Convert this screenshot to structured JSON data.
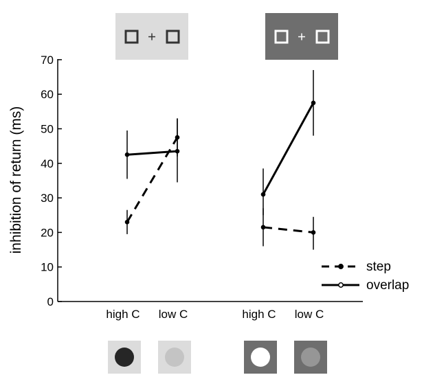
{
  "chart_data": {
    "type": "line",
    "ylabel": "inhibition of return (ms)",
    "ylim": [
      0,
      70
    ],
    "yticks": [
      0,
      10,
      20,
      30,
      40,
      50,
      60,
      70
    ],
    "grid": false,
    "legend_position": "bottom-right",
    "categories": [
      "high C",
      "low C",
      "high C",
      "low C"
    ],
    "groups": [
      {
        "fixation_colors": {
          "background": "#dcdcdc",
          "marker": "#333333"
        },
        "target_colors": [
          {
            "background": "#dcdcdc",
            "disc": "#262626"
          },
          {
            "background": "#dcdcdc",
            "disc": "#c4c4c4"
          }
        ],
        "series": [
          {
            "name": "step",
            "values": [
              23,
              47.5
            ],
            "error": [
              [
                19.5,
                26.5
              ],
              [
                42,
                53
              ]
            ]
          },
          {
            "name": "overlap",
            "values": [
              42.5,
              43.5
            ],
            "error": [
              [
                35.5,
                49.5
              ],
              [
                34.5,
                53
              ]
            ]
          }
        ]
      },
      {
        "fixation_colors": {
          "background": "#6e6e6e",
          "marker": "#ffffff"
        },
        "target_colors": [
          {
            "background": "#6e6e6e",
            "disc": "#ffffff"
          },
          {
            "background": "#6e6e6e",
            "disc": "#969696"
          }
        ],
        "series": [
          {
            "name": "step",
            "values": [
              21.5,
              20
            ],
            "error": [
              [
                16,
                27
              ],
              [
                15,
                24.5
              ]
            ]
          },
          {
            "name": "overlap",
            "values": [
              31,
              57.5
            ],
            "error": [
              [
                25,
                38.5
              ],
              [
                48,
                67
              ]
            ]
          }
        ]
      }
    ],
    "legend": [
      {
        "label": "step",
        "style": "dashed"
      },
      {
        "label": "overlap",
        "style": "solid"
      }
    ]
  }
}
